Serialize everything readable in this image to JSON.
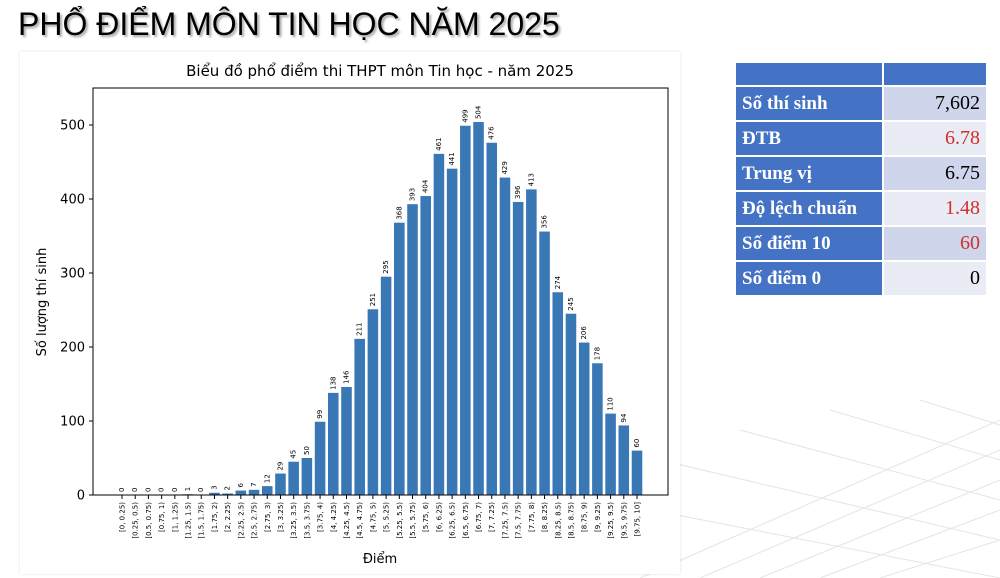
{
  "page_title": "PHỔ ĐIỂM MÔN TIN HỌC NĂM 2025",
  "stats": {
    "header": [
      "",
      ""
    ],
    "rows": [
      {
        "label": "Số thí sinh",
        "value": "7,602",
        "color": "#000000"
      },
      {
        "label": "ĐTB",
        "value": "6.78",
        "color": "#d0302b"
      },
      {
        "label": "Trung vị",
        "value": "6.75",
        "color": "#000000"
      },
      {
        "label": "Độ lệch chuẩn",
        "value": "1.48",
        "color": "#d0302b"
      },
      {
        "label": "Số điểm 10",
        "value": "60",
        "color": "#d0302b"
      },
      {
        "label": "Số điểm 0",
        "value": "0",
        "color": "#000000"
      }
    ]
  },
  "chart_data": {
    "type": "bar",
    "title": "Biểu đồ phổ điểm thi THPT môn Tin học - năm 2025",
    "xlabel": "Điểm",
    "ylabel": "Số lượng thí sinh",
    "ylim": [
      0,
      550
    ],
    "yticks": [
      0,
      100,
      200,
      300,
      400,
      500
    ],
    "bar_color": "#3a77b5",
    "categories": [
      "[0, 0.25)",
      "[0.25, 0.5)",
      "[0.5, 0.75)",
      "[0.75, 1)",
      "[1, 1.25)",
      "[1.25, 1.5)",
      "[1.5, 1.75)",
      "[1.75, 2)",
      "[2, 2.25)",
      "[2.25, 2.5)",
      "[2.5, 2.75)",
      "[2.75, 3)",
      "[3, 3.25)",
      "[3.25, 3.5)",
      "[3.5, 3.75)",
      "[3.75, 4)",
      "[4, 4.25)",
      "[4.25, 4.5)",
      "[4.5, 4.75)",
      "[4.75, 5)",
      "[5, 5.25)",
      "[5.25, 5.5)",
      "[5.5, 5.75)",
      "[5.75, 6)",
      "[6, 6.25)",
      "[6.25, 6.5)",
      "[6.5, 6.75)",
      "[6.75, 7)",
      "[7, 7.25)",
      "[7.25, 7.5)",
      "[7.5, 7.75)",
      "[7.75, 8)",
      "[8, 8.25)",
      "[8.25, 8.5)",
      "[8.5, 8.75)",
      "[8.75, 9)",
      "[9, 9.25)",
      "[9.25, 9.5)",
      "[9.5, 9.75)",
      "[9.75, 10]"
    ],
    "values": [
      0,
      0,
      0,
      0,
      0,
      1,
      0,
      3,
      2,
      6,
      7,
      12,
      29,
      45,
      50,
      99,
      138,
      146,
      211,
      251,
      295,
      368,
      393,
      404,
      461,
      441,
      499,
      504,
      476,
      429,
      396,
      413,
      356,
      274,
      245,
      206,
      178,
      110,
      94,
      60
    ],
    "grid": false,
    "legend": "none"
  }
}
